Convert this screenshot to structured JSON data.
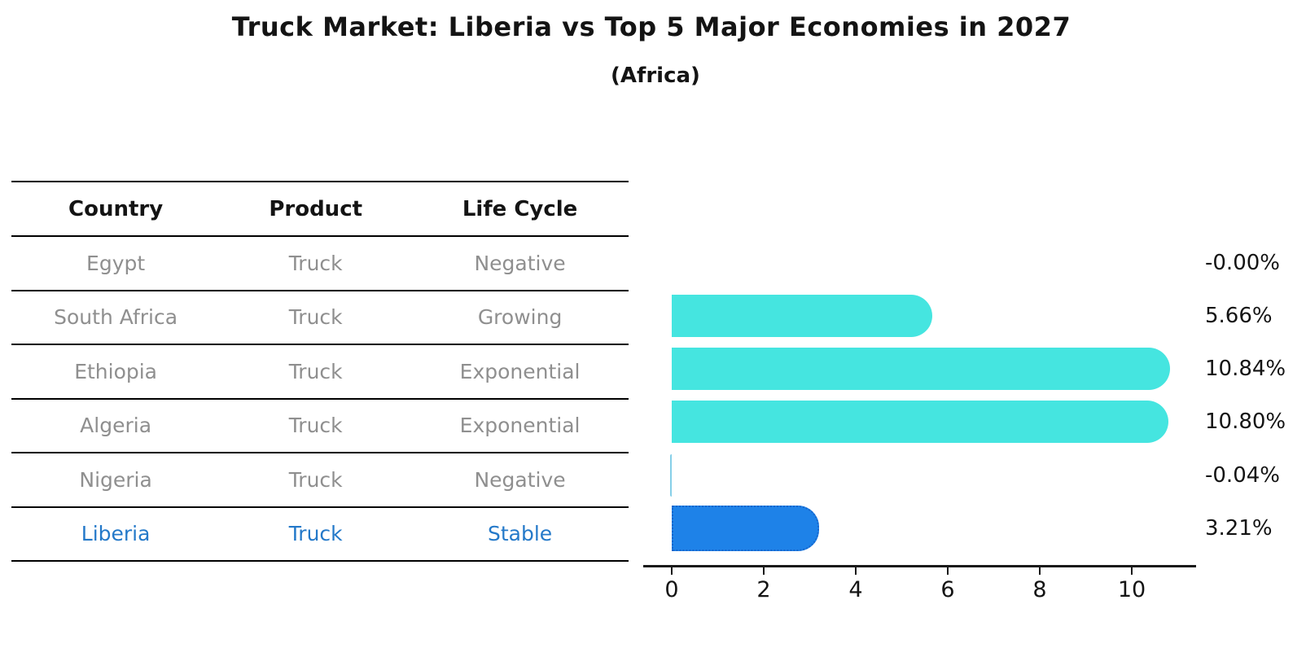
{
  "title": "Truck Market: Liberia vs Top 5 Major Economies in 2027",
  "subtitle": "(Africa)",
  "table": {
    "headers": [
      "Country",
      "Product",
      "Life Cycle"
    ],
    "rows": [
      {
        "country": "Egypt",
        "product": "Truck",
        "life_cycle": "Negative",
        "highlight": false
      },
      {
        "country": "South Africa",
        "product": "Truck",
        "life_cycle": "Growing",
        "highlight": false
      },
      {
        "country": "Ethiopia",
        "product": "Truck",
        "life_cycle": "Exponential",
        "highlight": false
      },
      {
        "country": "Algeria",
        "product": "Truck",
        "life_cycle": "Exponential",
        "highlight": false
      },
      {
        "country": "Nigeria",
        "product": "Truck",
        "life_cycle": "Negative",
        "highlight": false
      },
      {
        "country": "Liberia",
        "product": "Truck",
        "life_cycle": "Stable",
        "highlight": true
      }
    ]
  },
  "chart_data": {
    "type": "bar",
    "orientation": "horizontal",
    "title": "Truck Market: Liberia vs Top 5 Major Economies in 2027",
    "subtitle": "(Africa)",
    "categories": [
      "Egypt",
      "South Africa",
      "Ethiopia",
      "Algeria",
      "Nigeria",
      "Liberia"
    ],
    "values": [
      -0.0,
      5.66,
      10.84,
      10.8,
      -0.04,
      3.21
    ],
    "value_labels": [
      "-0.00%",
      "5.66%",
      "10.84%",
      "10.80%",
      "-0.04%",
      "3.21%"
    ],
    "x_ticks": [
      0,
      2,
      4,
      6,
      8,
      10
    ],
    "xlim": [
      -0.62,
      11.4
    ],
    "grid": false,
    "legend": "none",
    "highlight_category": "Liberia",
    "colors": {
      "bar_default": "#45e5e0",
      "bar_negative_sliver": "#86cfe8",
      "bar_highlight": "#1e82e8",
      "highlight_border": "#1565cc",
      "text_muted": "#8f8f8f",
      "text_highlight": "#2479c9",
      "text_main": "#141414"
    }
  }
}
